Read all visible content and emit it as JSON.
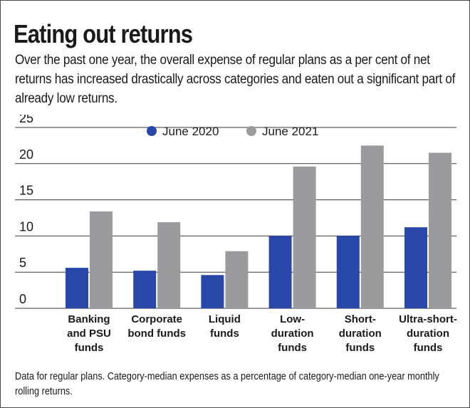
{
  "title": "Eating out returns",
  "subtitle": "Over the past one year, the overall expense of regular plans as a per cent of net returns has increased drastically across categories and eaten out a significant part of already low returns.",
  "footnote": "Data for regular plans. Category-median expenses as a percentage of category-median one-year monthly rolling returns.",
  "chart_data": {
    "type": "bar",
    "categories": [
      [
        "Banking",
        "and PSU",
        "funds"
      ],
      [
        "Corporate",
        "bond funds"
      ],
      [
        "Liquid",
        "funds"
      ],
      [
        "Low-",
        "duration",
        "funds"
      ],
      [
        "Short-",
        "duration",
        "funds"
      ],
      [
        "Ultra-short-",
        "duration",
        "funds"
      ]
    ],
    "series": [
      {
        "name": "June 2020",
        "color": "#2847a8",
        "values": [
          5.6,
          5.2,
          4.6,
          10.0,
          10.0,
          11.2
        ]
      },
      {
        "name": "June 2021",
        "color": "#9b9b9d",
        "values": [
          13.4,
          11.9,
          7.9,
          19.6,
          22.5,
          21.5
        ]
      }
    ],
    "yticks": [
      0,
      5,
      10,
      15,
      20,
      25
    ],
    "ylim": [
      0,
      25
    ],
    "grid": true,
    "legend_position": "top-center",
    "grid_color": "#3a3a3a"
  }
}
